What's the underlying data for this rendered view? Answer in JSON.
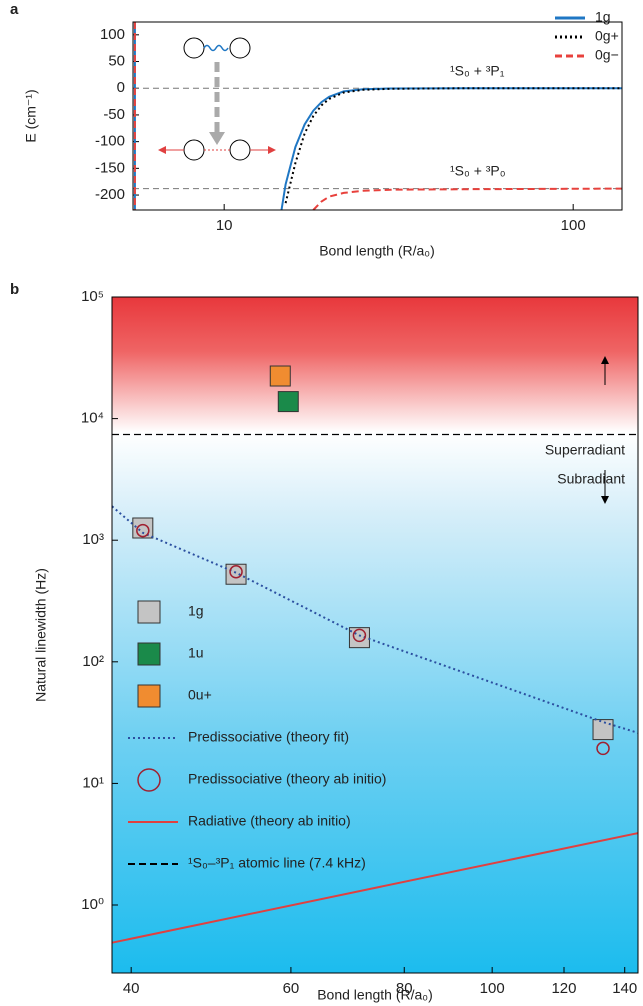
{
  "chart_data": [
    {
      "type": "line",
      "panel_label": "a",
      "xlabel": "Bond length (R/a₀)",
      "ylabel": "E (cm⁻¹)",
      "xscale": "log",
      "xlim": [
        5.48,
        138
      ],
      "ylim": [
        -228,
        124
      ],
      "xticks": [
        10,
        100
      ],
      "yticks": [
        -200,
        -150,
        -100,
        -50,
        0,
        50,
        100
      ],
      "legend": "upper right",
      "hlines": [
        0,
        -188
      ],
      "annotations": [
        "¹S₀ + ³P₁",
        "¹S₀ + ³P₀"
      ],
      "x": [
        5.55,
        5.55,
        10,
        14.6,
        15,
        16,
        17,
        18,
        19,
        20,
        22,
        25,
        30,
        50,
        138
      ],
      "series": [
        {
          "name": "1g",
          "color": "#1f77c4",
          "style": "solid",
          "values": [
            124,
            -228,
            null,
            -228,
            -180,
            -110,
            -68,
            -42,
            -26,
            -16,
            -6,
            -2,
            -0.5,
            0,
            0
          ]
        },
        {
          "name": "0g+",
          "color": "#000000",
          "style": "dotted",
          "values": [
            null,
            null,
            null,
            null,
            -215,
            -140,
            -85,
            -52,
            -32,
            -20,
            -8,
            -3,
            -1,
            0,
            0
          ]
        },
        {
          "name": "0g−",
          "color": "#e8413c",
          "style": "dashed",
          "values": [
            124,
            -228,
            null,
            null,
            null,
            null,
            null,
            -228,
            -212,
            -203,
            -196,
            -192,
            -190,
            -189,
            -188
          ]
        }
      ]
    },
    {
      "type": "scatter",
      "panel_label": "b",
      "xlabel": "Bond length (R/a₀)",
      "ylabel": "Natural linewidth (Hz)",
      "xscale": "log",
      "yscale": "log",
      "xlim": [
        38.1,
        144.8
      ],
      "ylim": [
        0.276,
        100000
      ],
      "xticks": [
        40,
        60,
        80,
        100,
        120,
        140
      ],
      "yticks": [
        {
          "value": 1,
          "label": "10⁰"
        },
        {
          "value": 10,
          "label": "10¹"
        },
        {
          "value": 100,
          "label": "10²"
        },
        {
          "value": 1000,
          "label": "10³"
        },
        {
          "value": 10000,
          "label": "10⁴"
        },
        {
          "value": 100000,
          "label": "10⁵"
        }
      ],
      "legend": "lower left",
      "annotations": [
        "Superradiant",
        "Subradiant"
      ],
      "series": [
        {
          "name": "1g",
          "color": "#c4c4c4",
          "style": "square",
          "x": [
            41.2,
            52.2,
            71.4,
            132.5
          ],
          "values": [
            1260,
            525,
            158,
            27.7
          ]
        },
        {
          "name": "1u",
          "color": "#1a8a4a",
          "style": "square",
          "x": [
            59.6
          ],
          "values": [
            13800
          ]
        },
        {
          "name": "0u+",
          "color": "#f08c30",
          "style": "square",
          "x": [
            58.4
          ],
          "values": [
            22400
          ]
        },
        {
          "name": "Predissociative (theory fit)",
          "color": "#2b4fa0",
          "style": "dotted",
          "x": [
            38.1,
            41.2,
            52.2,
            71.4,
            132.5,
            144.8
          ],
          "values": [
            1900,
            1150,
            540,
            165,
            32,
            26
          ]
        },
        {
          "name": "Predissociative (theory ab initio)",
          "color": "#a02030",
          "style": "circle",
          "x": [
            41.2,
            52.2,
            71.4,
            132.5
          ],
          "values": [
            1200,
            550,
            165,
            19.4
          ]
        },
        {
          "name": "Radiative (theory ab initio)",
          "color": "#e04040",
          "style": "solid",
          "x": [
            38.1,
            144.8
          ],
          "values": [
            0.49,
            3.9
          ]
        },
        {
          "name": "¹S₀–³P₁ atomic line (7.4 kHz)",
          "color": "#000000",
          "style": "hline",
          "values": [
            7400
          ]
        }
      ]
    }
  ]
}
